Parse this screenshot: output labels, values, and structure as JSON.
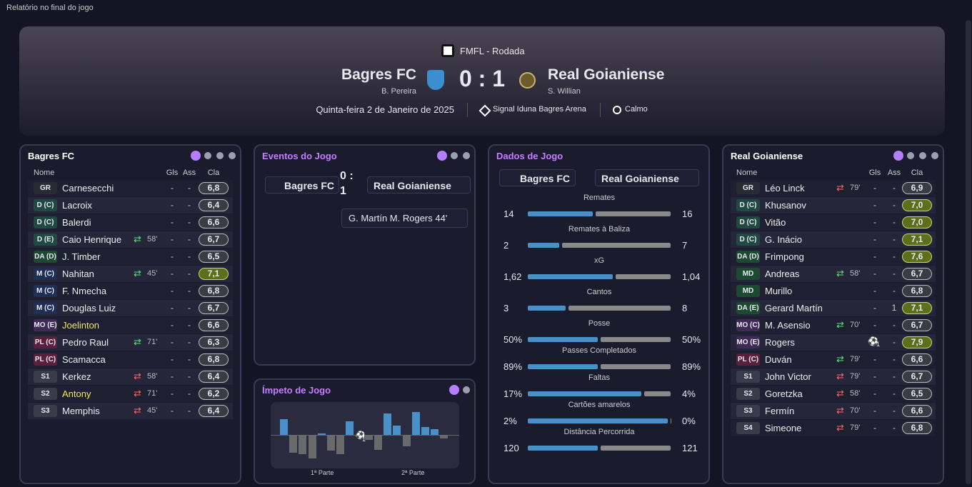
{
  "window_title": "Relatório no final do jogo",
  "header": {
    "competition": "FMFL - Rodada",
    "home": {
      "name": "Bagres FC",
      "scorer": "B. Pereira"
    },
    "score": "0 : 1",
    "away": {
      "name": "Real Goianiense",
      "scorer": "S. Willian"
    },
    "date": "Quinta-feira 2 de Janeiro de 2025",
    "stadium": "Signal Iduna Bagres Arena",
    "weather": "Calmo"
  },
  "home_panel": {
    "title": "Bagres FC",
    "columns": [
      "Nome",
      "Gls",
      "Ass",
      "Cla"
    ],
    "players": [
      {
        "pos": "GR",
        "name": "Carnesecchi",
        "gls": "-",
        "ass": "-",
        "rating": "6,8"
      },
      {
        "pos": "D (C)",
        "name": "Lacroix",
        "gls": "-",
        "ass": "-",
        "rating": "6,4"
      },
      {
        "pos": "D (C)",
        "name": "Balerdi",
        "gls": "-",
        "ass": "-",
        "rating": "6,6"
      },
      {
        "pos": "D (E)",
        "name": "Caio Henrique",
        "sub": {
          "type": "out",
          "minute": "58'"
        },
        "gls": "-",
        "ass": "-",
        "rating": "6,7"
      },
      {
        "pos": "DA (D)",
        "name": "J. Timber",
        "gls": "-",
        "ass": "-",
        "rating": "6,5"
      },
      {
        "pos": "M (C)",
        "name": "Nahitan",
        "sub": {
          "type": "out",
          "minute": "45'"
        },
        "gls": "-",
        "ass": "-",
        "rating": "7,1"
      },
      {
        "pos": "M (C)",
        "name": "F. Nmecha",
        "gls": "-",
        "ass": "-",
        "rating": "6,8"
      },
      {
        "pos": "M (C)",
        "name": "Douglas Luiz",
        "gls": "-",
        "ass": "-",
        "rating": "6,7"
      },
      {
        "pos": "MO (E)",
        "name": "Joelinton",
        "color": "#f2e94e",
        "gls": "-",
        "ass": "-",
        "rating": "6,6"
      },
      {
        "pos": "PL (C)",
        "name": "Pedro Raul",
        "sub": {
          "type": "out",
          "minute": "71'"
        },
        "gls": "-",
        "ass": "-",
        "rating": "6,3"
      },
      {
        "pos": "PL (C)",
        "name": "Scamacca",
        "gls": "-",
        "ass": "-",
        "rating": "6,8"
      },
      {
        "pos": "S1",
        "name": "Kerkez",
        "sub": {
          "type": "in",
          "minute": "58'"
        },
        "gls": "-",
        "ass": "-",
        "rating": "6,4"
      },
      {
        "pos": "S2",
        "name": "Antony",
        "color": "#f2e94e",
        "sub": {
          "type": "in",
          "minute": "71'"
        },
        "gls": "-",
        "ass": "-",
        "rating": "6,2"
      },
      {
        "pos": "S3",
        "name": "Memphis",
        "sub": {
          "type": "in",
          "minute": "45'"
        },
        "gls": "-",
        "ass": "-",
        "rating": "6,4"
      }
    ]
  },
  "events_panel": {
    "title": "Eventos do Jogo",
    "home": "Bagres FC",
    "score": "0 : 1",
    "away": "Real Goianiense",
    "event": "G. Martín M. Rogers 44'"
  },
  "momentum_panel": {
    "title": "Ímpeto de Jogo",
    "values": [
      22,
      -25,
      -27,
      -33,
      2,
      -22,
      -27,
      19,
      -3,
      -7,
      -21,
      30,
      13,
      -16,
      32,
      11,
      8,
      -5
    ],
    "goal_count": "1",
    "first_half": "1ª Parte",
    "second_half": "2ª Parte"
  },
  "stats_panel": {
    "title": "Dados de Jogo",
    "home": "Bagres FC",
    "away": "Real Goianiense",
    "stats": [
      {
        "label": "Remates",
        "home": 14,
        "away": 16
      },
      {
        "label": "Remates à Baliza",
        "home": 2,
        "away": 7
      },
      {
        "label": "xG",
        "home": {
          "value": 1.62,
          "label": "1,62"
        },
        "away": {
          "value": 1.04,
          "label": "1,04"
        }
      },
      {
        "label": "Cantos",
        "home": 3,
        "away": 8
      },
      {
        "label": "Posse",
        "home": {
          "value": 50,
          "label": "50%"
        },
        "away": {
          "value": 50,
          "label": "50%"
        }
      },
      {
        "label": "Passes Completados",
        "home": {
          "value": 89,
          "label": "89%"
        },
        "away": {
          "value": 89,
          "label": "89%"
        }
      },
      {
        "label": "Faltas",
        "home": {
          "value": 17,
          "label": "17%"
        },
        "away": {
          "value": 4,
          "label": "4%"
        }
      },
      {
        "label": "Cartões amarelos",
        "home": {
          "value": 2,
          "label": "2%"
        },
        "away": {
          "value": 0,
          "label": "0%"
        }
      },
      {
        "label": "Distância Percorrida",
        "home": 120,
        "away": 121
      }
    ]
  },
  "away_panel": {
    "title": "Real Goianiense",
    "columns": [
      "Nome",
      "Gls",
      "Ass",
      "Cla"
    ],
    "players": [
      {
        "pos": "GR",
        "name": "Léo Linck",
        "sub": {
          "type": "in",
          "minute": "79'"
        },
        "gls": "-",
        "ass": "-",
        "rating": "6,9"
      },
      {
        "pos": "D (C)",
        "name": "Khusanov",
        "gls": "-",
        "ass": "-",
        "rating": "7,0"
      },
      {
        "pos": "D (C)",
        "name": "Vitão",
        "gls": "-",
        "ass": "-",
        "rating": "7,0"
      },
      {
        "pos": "D (C)",
        "name": "G. Inácio",
        "gls": "-",
        "ass": "-",
        "rating": "7,1"
      },
      {
        "pos": "DA (D)",
        "name": "Frimpong",
        "gls": "-",
        "ass": "-",
        "rating": "7,6"
      },
      {
        "pos": "MD",
        "name": "Andreas",
        "sub": {
          "type": "out",
          "minute": "58'"
        },
        "gls": "-",
        "ass": "-",
        "rating": "6,7"
      },
      {
        "pos": "MD",
        "name": "Murillo",
        "gls": "-",
        "ass": "-",
        "rating": "6,8"
      },
      {
        "pos": "DA (E)",
        "name": "Gerard Martín",
        "gls": "-",
        "ass": "1",
        "rating": "7,1"
      },
      {
        "pos": "MO (C)",
        "name": "M. Asensio",
        "sub": {
          "type": "out",
          "minute": "70'"
        },
        "gls": "-",
        "ass": "-",
        "rating": "6,7"
      },
      {
        "pos": "MO (E)",
        "name": "Rogers",
        "gls": "1",
        "goal_icon": true,
        "ass": "-",
        "rating": "7,9"
      },
      {
        "pos": "PL (C)",
        "name": "Duván",
        "sub": {
          "type": "out",
          "minute": "79'"
        },
        "gls": "-",
        "ass": "-",
        "rating": "6,6"
      },
      {
        "pos": "S1",
        "name": "John Victor",
        "sub": {
          "type": "in",
          "minute": "79'"
        },
        "gls": "-",
        "ass": "-",
        "rating": "6,7"
      },
      {
        "pos": "S2",
        "name": "Goretzka",
        "sub": {
          "type": "in",
          "minute": "58'"
        },
        "gls": "-",
        "ass": "-",
        "rating": "6,5"
      },
      {
        "pos": "S3",
        "name": "Fermín",
        "sub": {
          "type": "in",
          "minute": "70'"
        },
        "gls": "-",
        "ass": "-",
        "rating": "6,6"
      },
      {
        "pos": "S4",
        "name": "Simeone",
        "sub": {
          "type": "in",
          "minute": "79'"
        },
        "gls": "-",
        "ass": "-",
        "rating": "6,8"
      }
    ]
  }
}
